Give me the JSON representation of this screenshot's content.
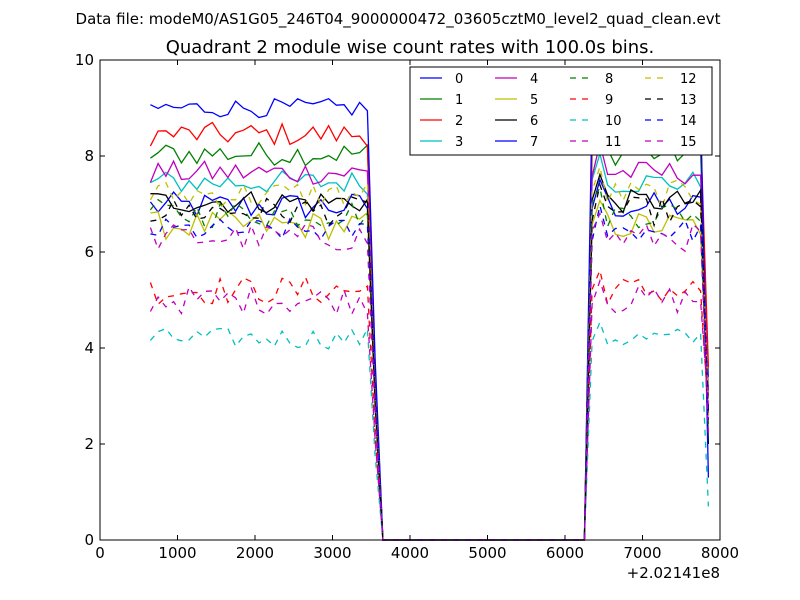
{
  "suptitle": "Data file: modeM0/AS1G05_246T04_9000000472_03605cztM0_level2_quad_clean.evt",
  "chart_data": {
    "type": "line",
    "title": "Quadrant 2 module wise count rates with 100.0s bins.",
    "xlabel": "",
    "ylabel": "",
    "x_offset_label": "+2.02141e8",
    "xlim": [
      0,
      8000
    ],
    "ylim": [
      0,
      10
    ],
    "xticks": [
      0,
      1000,
      2000,
      3000,
      4000,
      5000,
      6000,
      7000,
      8000
    ],
    "xtick_labels": [
      "0",
      "1000",
      "2000",
      "3000",
      "4000",
      "5000",
      "6000",
      "7000",
      "8000"
    ],
    "yticks": [
      0,
      2,
      4,
      6,
      8,
      10
    ],
    "ytick_labels": [
      "0",
      "2",
      "4",
      "6",
      "8",
      "10"
    ],
    "legend_location": "top-right",
    "legend_columns": 4,
    "x_range": {
      "start": 650,
      "end": 7850,
      "step": 100
    },
    "gap": {
      "down_start": 3550,
      "zero_from": 3650,
      "zero_to": 6250,
      "up_end": 6450
    },
    "series": [
      {
        "name": "0",
        "color": "#0000ff",
        "style": "solid",
        "level": 6.95,
        "amp": 0.3,
        "tail": 3.4
      },
      {
        "name": "1",
        "color": "#008000",
        "style": "solid",
        "level": 8.05,
        "amp": 0.25,
        "tail": 3.1
      },
      {
        "name": "2",
        "color": "#ff0000",
        "style": "solid",
        "level": 8.45,
        "amp": 0.25,
        "tail": 3.6
      },
      {
        "name": "3",
        "color": "#00bfbf",
        "style": "solid",
        "level": 7.45,
        "amp": 0.25,
        "tail": 3.0
      },
      {
        "name": "4",
        "color": "#bf00bf",
        "style": "solid",
        "level": 7.65,
        "amp": 0.25,
        "tail": 3.0
      },
      {
        "name": "5",
        "color": "#bfbf00",
        "style": "solid",
        "level": 6.55,
        "amp": 0.3,
        "tail": 2.6
      },
      {
        "name": "6",
        "color": "#000000",
        "style": "solid",
        "level": 7.05,
        "amp": 0.25,
        "tail": 2.0
      },
      {
        "name": "7",
        "color": "#0000ff",
        "style": "solid",
        "level": 9.0,
        "amp": 0.2,
        "tail": 1.3
      },
      {
        "name": "8",
        "color": "#008000",
        "style": "dashed",
        "level": 6.8,
        "amp": 0.3,
        "tail": 2.4
      },
      {
        "name": "9",
        "color": "#ff0000",
        "style": "dashed",
        "level": 5.2,
        "amp": 0.3,
        "tail": 2.6
      },
      {
        "name": "10",
        "color": "#00bfbf",
        "style": "dashed",
        "level": 4.2,
        "amp": 0.22,
        "tail": 0.7
      },
      {
        "name": "11",
        "color": "#bf00bf",
        "style": "dashed",
        "level": 5.0,
        "amp": 0.3,
        "tail": 2.8
      },
      {
        "name": "12",
        "color": "#bfbf00",
        "style": "dashed",
        "level": 7.2,
        "amp": 0.3,
        "tail": 2.9
      },
      {
        "name": "13",
        "color": "#000000",
        "style": "dashed",
        "level": 6.85,
        "amp": 0.3,
        "tail": 2.7
      },
      {
        "name": "14",
        "color": "#0000ff",
        "style": "dashed",
        "level": 6.45,
        "amp": 0.25,
        "tail": 2.5
      },
      {
        "name": "15",
        "color": "#bf00bf",
        "style": "dashed",
        "level": 6.3,
        "amp": 0.3,
        "tail": 2.2
      }
    ]
  }
}
